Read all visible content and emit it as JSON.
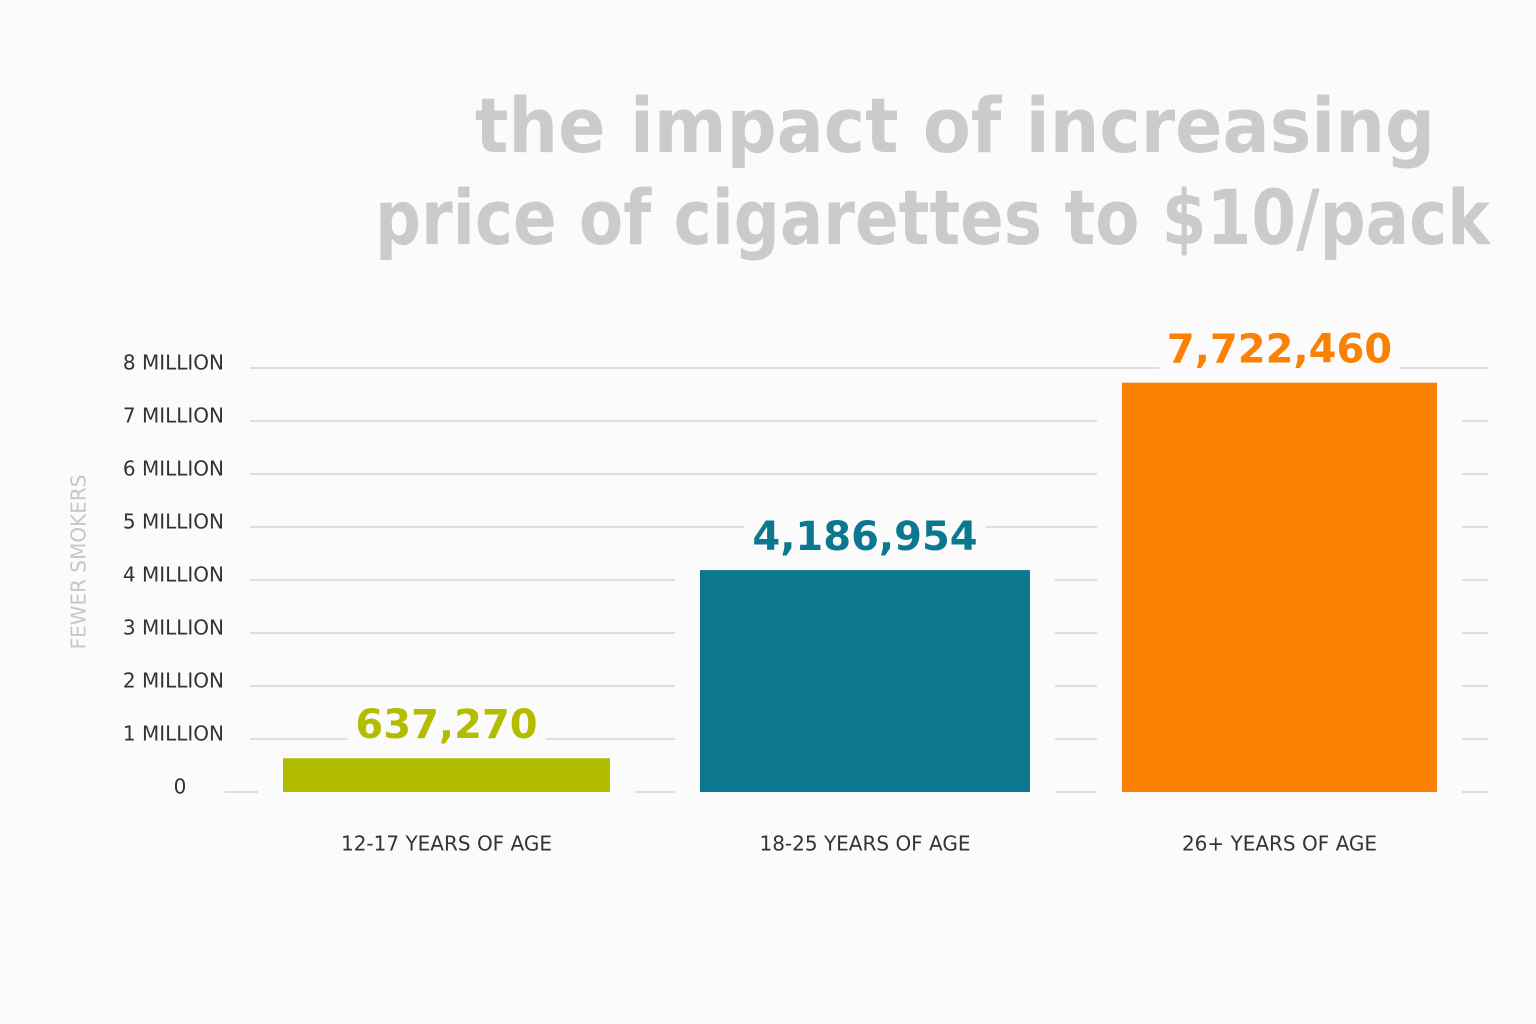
{
  "chart_data": {
    "type": "bar",
    "title": [
      "the impact of increasing",
      "price of cigarettes to $10/pack"
    ],
    "y_label": "FEWER SMOKERS",
    "categories": [
      "12-17 YEARS OF AGE",
      "18-25 YEARS OF AGE",
      "26+ YEARS OF AGE"
    ],
    "values": [
      637270,
      4186954,
      7722460
    ],
    "value_labels": [
      "637,270",
      "4,186,954",
      "7,722,460"
    ],
    "colors": [
      "#b3bd00",
      "#0b788f",
      "#fb8104"
    ],
    "ylim": [
      0,
      8000000
    ],
    "yticks": [
      0,
      {
        "value": 1000000,
        "label": "1 MILLION"
      },
      {
        "value": 2000000,
        "label": "2 MILLION"
      },
      {
        "value": 3000000,
        "label": "3 MILLION"
      },
      {
        "value": 4000000,
        "label": "4 MILLION"
      },
      {
        "value": 5000000,
        "label": "5 MILLION"
      },
      {
        "value": 6000000,
        "label": "6 MILLION"
      },
      {
        "value": 7000000,
        "label": "7 MILLION"
      },
      {
        "value": 8000000,
        "label": "8 MILLION"
      }
    ],
    "grid": true
  }
}
